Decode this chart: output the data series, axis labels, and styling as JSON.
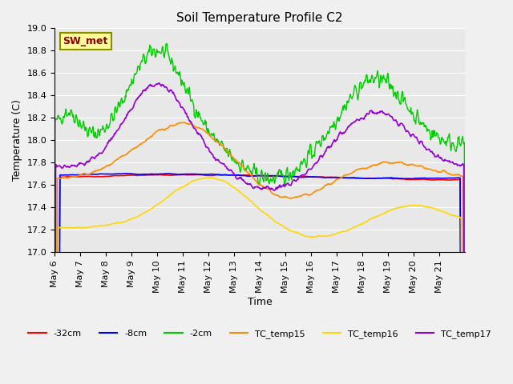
{
  "title": "Soil Temperature Profile C2",
  "xlabel": "Time",
  "ylabel": "Temperature (C)",
  "ylim": [
    17.0,
    19.0
  ],
  "yticks": [
    17.0,
    17.2,
    17.4,
    17.6,
    17.8,
    18.0,
    18.2,
    18.4,
    18.6,
    18.8,
    19.0
  ],
  "x_labels": [
    "May 6",
    "May 7",
    "May 8",
    "May 9",
    "May 10",
    "May 11",
    "May 12",
    "May 13",
    "May 14",
    "May 15",
    "May 16",
    "May 17",
    "May 18",
    "May 19",
    "May 20",
    "May 21"
  ],
  "annotation_text": "SW_met",
  "annotation_color": "#8B0000",
  "annotation_bg": "#FFFF99",
  "annotation_border": "#8B8B00",
  "colors": {
    "neg32cm": "#FF0000",
    "neg8cm": "#0000FF",
    "neg2cm": "#00CC00",
    "TC_temp15": "#FF8C00",
    "TC_temp16": "#FFD700",
    "TC_temp17": "#9400D3"
  },
  "bg_color": "#E8E8E8",
  "grid_color": "#FFFFFF",
  "fig_bg": "#F0F0F0"
}
